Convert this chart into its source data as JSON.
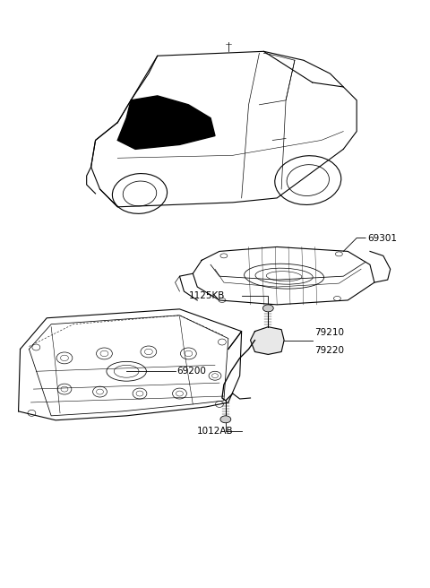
{
  "background_color": "#ffffff",
  "line_color": "#000000",
  "fig_width": 4.8,
  "fig_height": 6.56,
  "dpi": 100,
  "parts": {
    "trunk_lid_label": "69200",
    "rear_panel_label": "69301",
    "hinge_label1": "79210",
    "hinge_label2": "79220",
    "bolt1_label": "1125KB",
    "bolt2_label": "1012AB",
    "font_size": 7.5
  }
}
